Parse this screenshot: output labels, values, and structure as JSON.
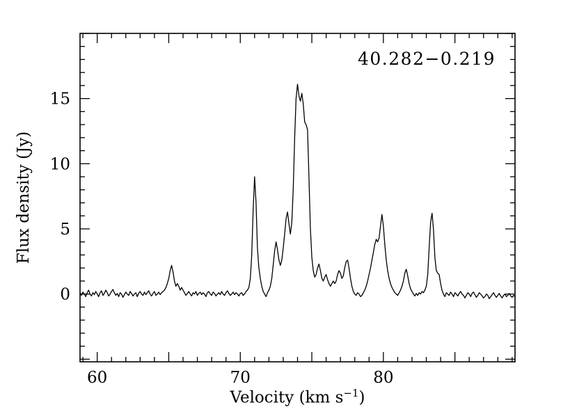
{
  "figure": {
    "annotation": "40.282−0.219",
    "background": "#ffffff",
    "line_color": "#000000"
  },
  "axes": {
    "xlabel_pre": "Velocity (km s",
    "xlabel_sup": "−1",
    "xlabel_post": ")",
    "ylabel": "Flux density (Jy)"
  },
  "chart_data": {
    "type": "line",
    "title": "40.282−0.219",
    "xlabel": "Velocity (km s^-1)",
    "ylabel": "Flux density (Jy)",
    "xlim": [
      58.8,
      89.2
    ],
    "ylim": [
      -5.2,
      20
    ],
    "xticks": [
      60,
      70,
      80
    ],
    "yticks": [
      0,
      5,
      10,
      15
    ],
    "minor_tick_step": 1,
    "major_tick_step": 5,
    "grid": false,
    "legend": "none",
    "x_start": 58.8,
    "x_step": 0.1,
    "flux": [
      0.1,
      -0.1,
      0.15,
      0.0,
      -0.2,
      0.1,
      0.3,
      0.0,
      -0.15,
      0.1,
      -0.05,
      0.2,
      0.0,
      -0.2,
      0.1,
      0.25,
      -0.1,
      0.05,
      0.3,
      0.1,
      -0.15,
      0.0,
      0.2,
      0.35,
      0.1,
      -0.1,
      0.05,
      -0.2,
      0.1,
      0.0,
      -0.25,
      -0.05,
      0.15,
      0.0,
      -0.1,
      0.2,
      0.05,
      -0.15,
      0.0,
      0.1,
      -0.2,
      0.05,
      0.2,
      0.0,
      -0.1,
      0.15,
      -0.05,
      0.1,
      0.25,
      0.0,
      -0.15,
      0.05,
      0.2,
      -0.1,
      0.0,
      0.15,
      -0.05,
      0.1,
      0.2,
      0.3,
      0.5,
      0.8,
      1.2,
      1.8,
      2.2,
      1.7,
      1.0,
      0.6,
      0.8,
      0.6,
      0.3,
      0.5,
      0.3,
      0.1,
      -0.1,
      0.05,
      0.2,
      0.0,
      -0.15,
      0.1,
      0.0,
      0.2,
      -0.1,
      0.05,
      0.15,
      -0.05,
      0.1,
      0.0,
      -0.2,
      0.1,
      0.2,
      0.0,
      -0.1,
      0.15,
      0.05,
      -0.15,
      0.0,
      0.1,
      -0.05,
      0.2,
      0.0,
      -0.1,
      0.1,
      0.25,
      0.05,
      -0.1,
      0.0,
      0.15,
      -0.05,
      0.1,
      0.0,
      -0.15,
      0.05,
      0.1,
      -0.1,
      0.0,
      0.2,
      0.3,
      0.5,
      1.2,
      3.0,
      6.5,
      9.0,
      7.0,
      3.5,
      2.0,
      1.2,
      0.6,
      0.2,
      0.0,
      -0.2,
      0.1,
      0.3,
      0.6,
      1.2,
      2.2,
      3.3,
      4.0,
      3.4,
      2.6,
      2.2,
      2.6,
      3.5,
      4.6,
      5.8,
      6.3,
      5.4,
      4.6,
      5.5,
      8.0,
      12.0,
      15.0,
      16.1,
      15.2,
      14.8,
      15.4,
      14.6,
      13.2,
      13.0,
      12.6,
      9.0,
      5.0,
      2.8,
      1.8,
      1.3,
      1.5,
      2.0,
      2.3,
      1.8,
      1.2,
      1.0,
      1.3,
      1.5,
      1.1,
      0.8,
      0.6,
      0.8,
      1.0,
      0.8,
      1.0,
      1.5,
      1.8,
      1.6,
      1.2,
      1.4,
      2.0,
      2.5,
      2.6,
      2.0,
      1.2,
      0.6,
      0.2,
      0.0,
      -0.1,
      0.1,
      0.0,
      -0.2,
      -0.1,
      0.1,
      0.3,
      0.6,
      1.0,
      1.5,
      2.0,
      2.6,
      3.2,
      3.8,
      4.2,
      4.0,
      4.3,
      5.2,
      6.1,
      5.2,
      3.8,
      2.6,
      1.8,
      1.2,
      0.8,
      0.5,
      0.3,
      0.1,
      0.0,
      -0.1,
      0.1,
      0.3,
      0.6,
      1.0,
      1.6,
      1.9,
      1.4,
      0.8,
      0.4,
      0.2,
      0.0,
      -0.15,
      0.05,
      -0.1,
      0.1,
      0.0,
      0.2,
      0.1,
      0.3,
      0.6,
      1.5,
      3.5,
      5.5,
      6.2,
      5.0,
      2.8,
      1.8,
      1.6,
      1.5,
      0.8,
      0.3,
      0.0,
      -0.2,
      0.1,
      0.0,
      -0.1,
      0.15,
      0.0,
      -0.2,
      0.1,
      0.0,
      -0.15,
      0.05,
      0.2,
      0.0,
      -0.1,
      -0.3,
      -0.1,
      0.1,
      0.0,
      -0.2,
      0.05,
      0.15,
      -0.05,
      -0.25,
      -0.1,
      0.1,
      0.0,
      -0.15,
      -0.3,
      -0.2,
      0.0,
      -0.1,
      -0.35,
      -0.2,
      -0.05,
      0.1,
      -0.1,
      -0.25,
      -0.1,
      0.05,
      -0.15,
      -0.3,
      -0.1,
      0.0,
      -0.2,
      -0.1,
      0.05,
      -0.15,
      -0.25,
      -0.1,
      -0.2
    ]
  }
}
